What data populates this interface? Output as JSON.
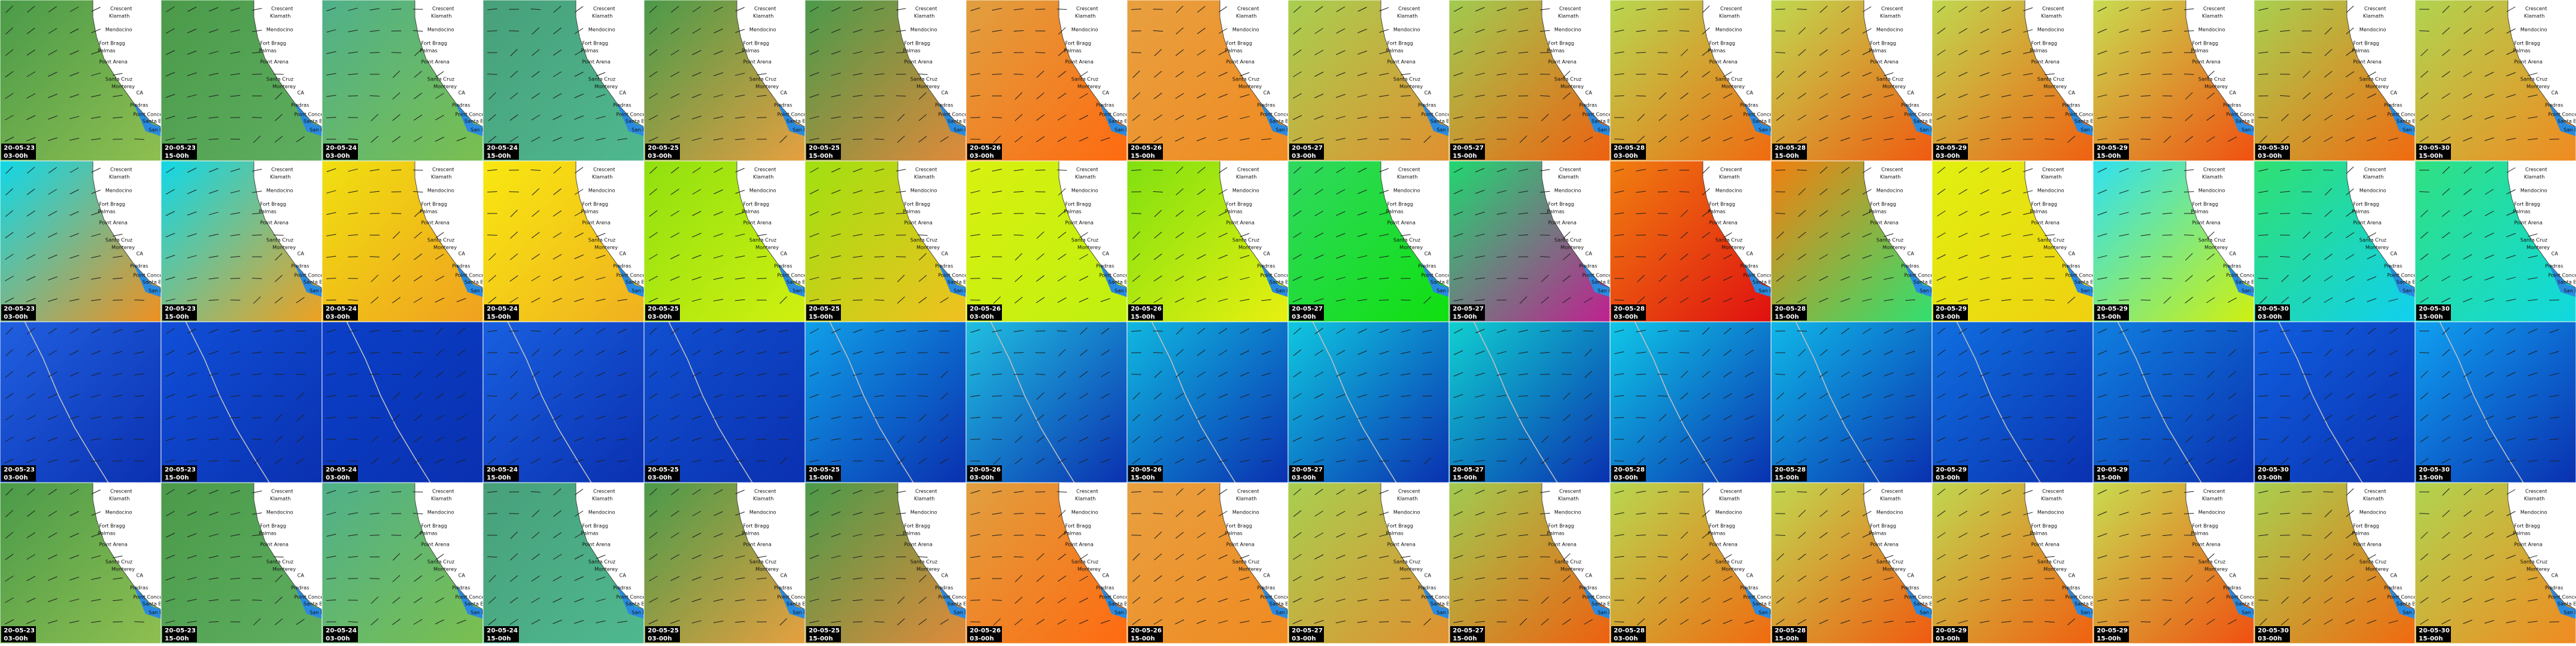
{
  "tiles": {
    "dates": [
      "20-05-23",
      "20-05-23",
      "20-05-24",
      "20-05-24",
      "20-05-25",
      "20-05-25",
      "20-05-26",
      "20-05-26",
      "20-05-27",
      "20-05-27",
      "20-05-28",
      "20-05-28",
      "20-05-29",
      "20-05-29",
      "20-05-30",
      "20-05-30"
    ],
    "times": [
      "03-00h",
      "15-00h",
      "03-00h",
      "15-00h",
      "03-00h",
      "15-00h",
      "03-00h",
      "15-00h",
      "03-00h",
      "15-00h",
      "03-00h",
      "15-00h",
      "03-00h",
      "15-00h",
      "03-00h",
      "15-00h"
    ]
  },
  "places": [
    "Crescent",
    "Klamath",
    "Mendocino",
    "Fort Bragg",
    "Palmas",
    "Point Arena",
    "Santa Cruz",
    "Monterey",
    "CA",
    "Piedras",
    "Point Conception",
    "Santa Barbara",
    "San Diego"
  ]
}
